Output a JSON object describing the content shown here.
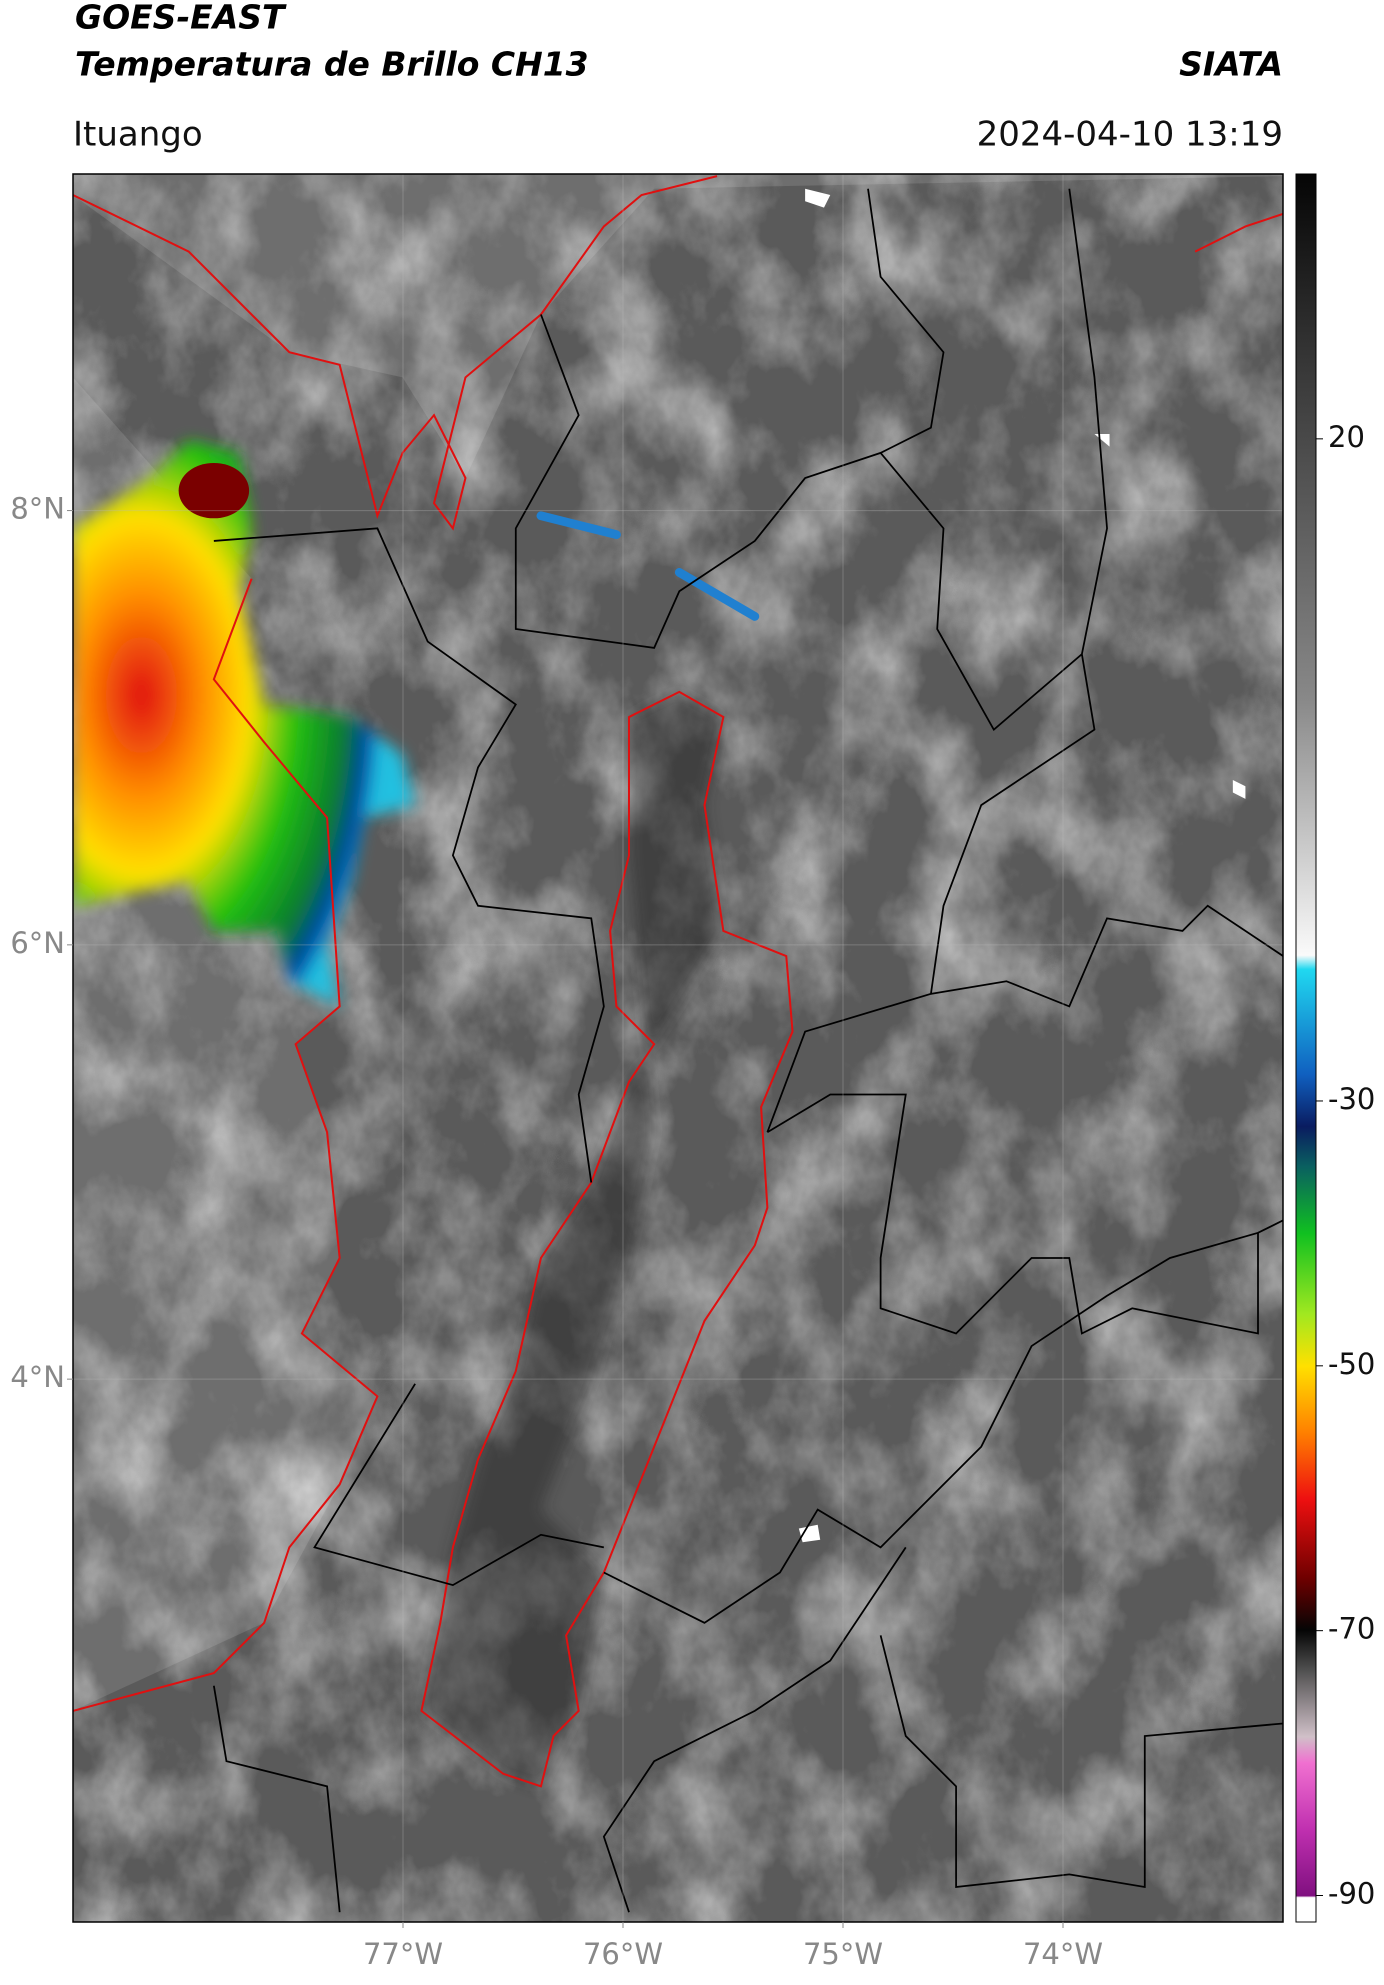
{
  "header": {
    "title": "GOES-EAST",
    "subtitle": "Temperatura de Brillo CH13",
    "credit": "SIATA",
    "location": "Ituango",
    "datetime": "2024-04-10 13:19"
  },
  "map": {
    "xlim": [
      -78.5,
      -73
    ],
    "ylim": [
      1.5,
      9.55
    ],
    "xticks": [
      {
        "value": -77,
        "label": "77°W"
      },
      {
        "value": -76,
        "label": "76°W"
      },
      {
        "value": -75,
        "label": "75°W"
      },
      {
        "value": -74,
        "label": "74°W"
      }
    ],
    "yticks": [
      {
        "value": 8,
        "label": "8°N"
      },
      {
        "value": 6,
        "label": "6°N"
      },
      {
        "value": 4,
        "label": "4°N"
      }
    ],
    "grid": true
  },
  "colorbar": {
    "clim": [
      -92,
      40
    ],
    "ticks": [
      20,
      -30,
      -50,
      -70,
      -90
    ]
  }
}
